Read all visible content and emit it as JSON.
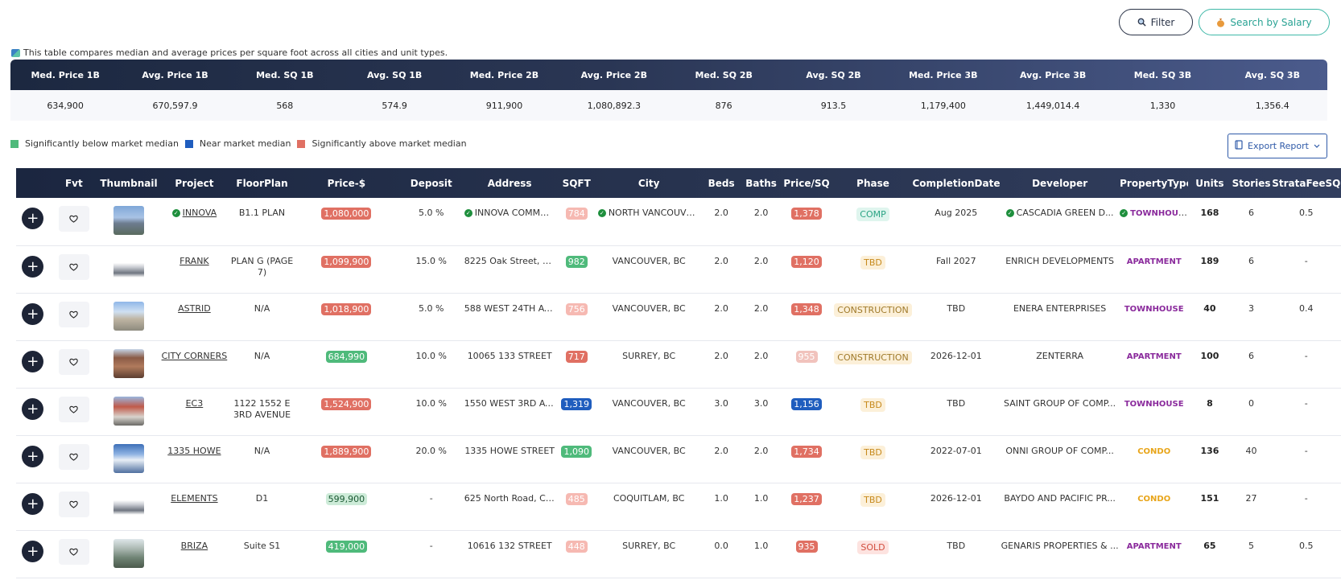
{
  "toolbar": {
    "filter_label": "Filter",
    "salary_label": "Search by Salary"
  },
  "note": "This table compares median and average prices per square foot across all cities and unit types.",
  "summary": {
    "headers": [
      "Med. Price 1B",
      "Avg. Price 1B",
      "Med. SQ 1B",
      "Avg. SQ 1B",
      "Med. Price 2B",
      "Avg. Price 2B",
      "Med. SQ 2B",
      "Avg. SQ 2B",
      "Med. Price 3B",
      "Avg. Price 3B",
      "Med. SQ 3B",
      "Avg. SQ 3B"
    ],
    "values": [
      "634,900",
      "670,597.9",
      "568",
      "574.9",
      "911,900",
      "1,080,892.3",
      "876",
      "913.5",
      "1,179,400",
      "1,449,014.4",
      "1,330",
      "1,356.4"
    ]
  },
  "legend": {
    "below": "Significantly below market median",
    "near": "Near market median",
    "above": "Significantly above market median",
    "colors": {
      "below": "#4fba7b",
      "near": "#1f5dbe",
      "above": "#e07063"
    }
  },
  "export_label": "Export Report",
  "table": {
    "columns": [
      "Fvt",
      "Thumbnail",
      "Project",
      "FloorPlan",
      "Price-$",
      "Deposit",
      "Address",
      "SQFT",
      "City",
      "Beds",
      "Baths",
      "Price/SQ",
      "Phase",
      "CompletionDate",
      "Developer",
      "PropertyType",
      "Units",
      "Stories",
      "StrataFeeSQ"
    ],
    "rows": [
      {
        "project": "INNOVA",
        "floorplan": "B1.1 PLAN",
        "price": "1,080,000",
        "deposit": "5.0 %",
        "address": "INNOVA COMMUNIT...",
        "sqft": "784",
        "city": "NORTH VANCOUVER,...",
        "beds": "2.0",
        "baths": "2.0",
        "ppsq": "1,378",
        "phase": "COMP",
        "completion": "Aug 2025",
        "developer": "CASCADIA GREEN D...",
        "type": "TOWNHOUSE",
        "units": "168",
        "stories": "6",
        "strata": "0.5"
      },
      {
        "project": "FRANK",
        "floorplan": "PLAN G (PAGE 7)",
        "price": "1,099,900",
        "deposit": "15.0 %",
        "address": "8225 Oak Street, Vanc...",
        "sqft": "982",
        "city": "VANCOUVER, BC",
        "beds": "2.0",
        "baths": "2.0",
        "ppsq": "1,120",
        "phase": "TBD",
        "completion": "Fall 2027",
        "developer": "ENRICH DEVELOPMENTS",
        "type": "APARTMENT",
        "units": "189",
        "stories": "6",
        "strata": "-"
      },
      {
        "project": "ASTRID",
        "floorplan": "N/A",
        "price": "1,018,900",
        "deposit": "5.0 %",
        "address": "588 WEST 24TH AVENUE",
        "sqft": "756",
        "city": "VANCOUVER, BC",
        "beds": "2.0",
        "baths": "2.0",
        "ppsq": "1,348",
        "phase": "CONSTRUCTION",
        "completion": "TBD",
        "developer": "ENERA ENTERPRISES",
        "type": "TOWNHOUSE",
        "units": "40",
        "stories": "3",
        "strata": "0.4"
      },
      {
        "project": "CITY CORNERS",
        "floorplan": "N/A",
        "price": "684,990",
        "deposit": "10.0 %",
        "address": "10065 133 STREET",
        "sqft": "717",
        "city": "SURREY, BC",
        "beds": "2.0",
        "baths": "2.0",
        "ppsq": "955",
        "phase": "CONSTRUCTION",
        "completion": "2026-12-01",
        "developer": "ZENTERRA",
        "type": "APARTMENT",
        "units": "100",
        "stories": "6",
        "strata": "-"
      },
      {
        "project": "EC3",
        "floorplan": "1122 1552 E 3RD AVENUE",
        "price": "1,524,900",
        "deposit": "10.0 %",
        "address": "1550 WEST 3RD AVENUE",
        "sqft": "1,319",
        "city": "VANCOUVER, BC",
        "beds": "3.0",
        "baths": "3.0",
        "ppsq": "1,156",
        "phase": "TBD",
        "completion": "TBD",
        "developer": "SAINT GROUP OF COMP...",
        "type": "TOWNHOUSE",
        "units": "8",
        "stories": "0",
        "strata": "-"
      },
      {
        "project": "1335 HOWE",
        "floorplan": "N/A",
        "price": "1,889,900",
        "deposit": "20.0 %",
        "address": "1335 HOWE STREET",
        "sqft": "1,090",
        "city": "VANCOUVER, BC",
        "beds": "2.0",
        "baths": "2.0",
        "ppsq": "1,734",
        "phase": "TBD",
        "completion": "2022-07-01",
        "developer": "ONNI GROUP OF COMP...",
        "type": "CONDO",
        "units": "136",
        "stories": "40",
        "strata": "-"
      },
      {
        "project": "ELEMENTS",
        "floorplan": "D1",
        "price": "599,900",
        "deposit": "-",
        "address": "625 North Road, Coqui...",
        "sqft": "485",
        "city": "COQUITLAM, BC",
        "beds": "1.0",
        "baths": "1.0",
        "ppsq": "1,237",
        "phase": "TBD",
        "completion": "2026-12-01",
        "developer": "BAYDO AND PACIFIC PR...",
        "type": "CONDO",
        "units": "151",
        "stories": "27",
        "strata": "-"
      },
      {
        "project": "BRIZA",
        "floorplan": "Suite S1",
        "price": "419,000",
        "deposit": "-",
        "address": "10616 132 STREET",
        "sqft": "448",
        "city": "SURREY, BC",
        "beds": "0.0",
        "baths": "1.0",
        "ppsq": "935",
        "phase": "SOLD",
        "completion": "TBD",
        "developer": "GENARIS PROPERTIES & ...",
        "type": "APARTMENT",
        "units": "65",
        "stories": "5",
        "strata": "0.5"
      }
    ]
  }
}
